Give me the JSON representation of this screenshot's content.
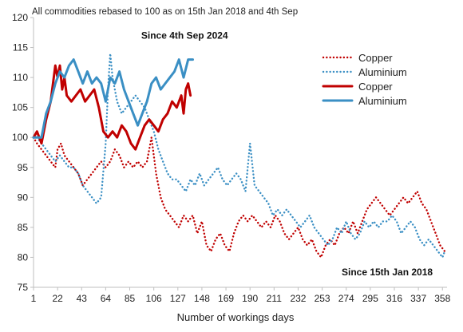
{
  "chart_data": {
    "type": "line",
    "title": "",
    "subtitle": "All commodities rebased to 100 as on 15th Jan 2018 and 4th Sep",
    "xlabel": "Number of workings days",
    "ylabel": "",
    "xlim": [
      1,
      362
    ],
    "ylim": [
      75,
      120
    ],
    "x_ticks": [
      1,
      22,
      43,
      64,
      85,
      106,
      127,
      148,
      169,
      190,
      211,
      232,
      253,
      274,
      295,
      316,
      337,
      358
    ],
    "y_ticks": [
      75,
      80,
      85,
      90,
      95,
      100,
      105,
      110,
      115,
      120
    ],
    "grid": false,
    "legend_position": "top-right",
    "annotations": [
      {
        "text": "Since 4th Sep 2024",
        "x": 95,
        "y": 116.5
      },
      {
        "text": "Since 15th Jan 2018",
        "x": 270,
        "y": 77
      }
    ],
    "series": [
      {
        "name": "Copper",
        "style": "dotted",
        "color": "#C00000",
        "points": [
          [
            1,
            100
          ],
          [
            4,
            99
          ],
          [
            8,
            98
          ],
          [
            12,
            97
          ],
          [
            16,
            96
          ],
          [
            20,
            95
          ],
          [
            22,
            98
          ],
          [
            25,
            99
          ],
          [
            28,
            97
          ],
          [
            32,
            96
          ],
          [
            36,
            95
          ],
          [
            40,
            94
          ],
          [
            44,
            92
          ],
          [
            48,
            93
          ],
          [
            52,
            94
          ],
          [
            56,
            95
          ],
          [
            60,
            96
          ],
          [
            64,
            95
          ],
          [
            68,
            96
          ],
          [
            72,
            98
          ],
          [
            76,
            97
          ],
          [
            80,
            95
          ],
          [
            84,
            96
          ],
          [
            88,
            95
          ],
          [
            92,
            96
          ],
          [
            96,
            95
          ],
          [
            100,
            96
          ],
          [
            104,
            100
          ],
          [
            108,
            94
          ],
          [
            112,
            90
          ],
          [
            116,
            88
          ],
          [
            120,
            87
          ],
          [
            124,
            86
          ],
          [
            128,
            85
          ],
          [
            132,
            87
          ],
          [
            136,
            86
          ],
          [
            140,
            87
          ],
          [
            144,
            84
          ],
          [
            148,
            86
          ],
          [
            152,
            82
          ],
          [
            156,
            81
          ],
          [
            160,
            83
          ],
          [
            164,
            84
          ],
          [
            168,
            82
          ],
          [
            172,
            81
          ],
          [
            176,
            84
          ],
          [
            180,
            86
          ],
          [
            184,
            87
          ],
          [
            188,
            86
          ],
          [
            192,
            87
          ],
          [
            196,
            86
          ],
          [
            200,
            85
          ],
          [
            204,
            86
          ],
          [
            208,
            85
          ],
          [
            212,
            87
          ],
          [
            216,
            86
          ],
          [
            220,
            84
          ],
          [
            224,
            83
          ],
          [
            228,
            84
          ],
          [
            232,
            85
          ],
          [
            236,
            83
          ],
          [
            240,
            82
          ],
          [
            244,
            83
          ],
          [
            248,
            81
          ],
          [
            252,
            80
          ],
          [
            256,
            82
          ],
          [
            260,
            83
          ],
          [
            264,
            82
          ],
          [
            268,
            84
          ],
          [
            272,
            85
          ],
          [
            276,
            84
          ],
          [
            280,
            86
          ],
          [
            284,
            84
          ],
          [
            288,
            86
          ],
          [
            292,
            88
          ],
          [
            296,
            89
          ],
          [
            300,
            90
          ],
          [
            304,
            89
          ],
          [
            308,
            88
          ],
          [
            312,
            87
          ],
          [
            316,
            88
          ],
          [
            320,
            89
          ],
          [
            324,
            90
          ],
          [
            328,
            89
          ],
          [
            332,
            90
          ],
          [
            336,
            91
          ],
          [
            340,
            89
          ],
          [
            344,
            88
          ],
          [
            348,
            86
          ],
          [
            352,
            84
          ],
          [
            356,
            82
          ],
          [
            360,
            81
          ]
        ]
      },
      {
        "name": "Aluminium",
        "style": "dotted",
        "color": "#3A8FC4",
        "points": [
          [
            1,
            100
          ],
          [
            4,
            100
          ],
          [
            8,
            99
          ],
          [
            12,
            98
          ],
          [
            16,
            97
          ],
          [
            20,
            96
          ],
          [
            24,
            97
          ],
          [
            28,
            96
          ],
          [
            32,
            95
          ],
          [
            36,
            95
          ],
          [
            40,
            94
          ],
          [
            44,
            92
          ],
          [
            48,
            91
          ],
          [
            52,
            90
          ],
          [
            56,
            89
          ],
          [
            60,
            90
          ],
          [
            64,
            99
          ],
          [
            66,
            108
          ],
          [
            68,
            114
          ],
          [
            70,
            110
          ],
          [
            74,
            106
          ],
          [
            78,
            104
          ],
          [
            82,
            105
          ],
          [
            86,
            106
          ],
          [
            90,
            107
          ],
          [
            94,
            106
          ],
          [
            98,
            105
          ],
          [
            102,
            103
          ],
          [
            106,
            101
          ],
          [
            110,
            98
          ],
          [
            114,
            96
          ],
          [
            118,
            94
          ],
          [
            122,
            93
          ],
          [
            126,
            93
          ],
          [
            130,
            92
          ],
          [
            134,
            91
          ],
          [
            138,
            93
          ],
          [
            142,
            92
          ],
          [
            146,
            94
          ],
          [
            150,
            92
          ],
          [
            154,
            93
          ],
          [
            158,
            94
          ],
          [
            162,
            95
          ],
          [
            166,
            93
          ],
          [
            170,
            92
          ],
          [
            174,
            93
          ],
          [
            178,
            94
          ],
          [
            182,
            93
          ],
          [
            186,
            91
          ],
          [
            190,
            99
          ],
          [
            194,
            92
          ],
          [
            198,
            91
          ],
          [
            202,
            90
          ],
          [
            206,
            89
          ],
          [
            210,
            87
          ],
          [
            214,
            88
          ],
          [
            218,
            87
          ],
          [
            222,
            88
          ],
          [
            226,
            87
          ],
          [
            230,
            86
          ],
          [
            234,
            85
          ],
          [
            238,
            86
          ],
          [
            242,
            87
          ],
          [
            246,
            85
          ],
          [
            250,
            84
          ],
          [
            254,
            83
          ],
          [
            258,
            82
          ],
          [
            262,
            83
          ],
          [
            266,
            85
          ],
          [
            270,
            84
          ],
          [
            274,
            86
          ],
          [
            278,
            84
          ],
          [
            282,
            83
          ],
          [
            286,
            84
          ],
          [
            290,
            86
          ],
          [
            294,
            85
          ],
          [
            298,
            86
          ],
          [
            302,
            85
          ],
          [
            306,
            86
          ],
          [
            310,
            86
          ],
          [
            314,
            87
          ],
          [
            318,
            86
          ],
          [
            322,
            84
          ],
          [
            326,
            85
          ],
          [
            330,
            86
          ],
          [
            334,
            85
          ],
          [
            338,
            83
          ],
          [
            342,
            82
          ],
          [
            346,
            83
          ],
          [
            350,
            82
          ],
          [
            354,
            81
          ],
          [
            358,
            80
          ],
          [
            360,
            81
          ]
        ]
      },
      {
        "name": "Copper",
        "style": "solid",
        "color": "#C00000",
        "points": [
          [
            1,
            100
          ],
          [
            4,
            101
          ],
          [
            8,
            99
          ],
          [
            12,
            103
          ],
          [
            16,
            106
          ],
          [
            18,
            109
          ],
          [
            20,
            112
          ],
          [
            22,
            110
          ],
          [
            24,
            112
          ],
          [
            26,
            108
          ],
          [
            28,
            110
          ],
          [
            30,
            107
          ],
          [
            34,
            106
          ],
          [
            38,
            107
          ],
          [
            42,
            108
          ],
          [
            46,
            106
          ],
          [
            50,
            107
          ],
          [
            54,
            108
          ],
          [
            58,
            105
          ],
          [
            62,
            101
          ],
          [
            66,
            100
          ],
          [
            70,
            101
          ],
          [
            74,
            100
          ],
          [
            78,
            102
          ],
          [
            82,
            101
          ],
          [
            86,
            99
          ],
          [
            90,
            98
          ],
          [
            94,
            100
          ],
          [
            98,
            102
          ],
          [
            102,
            103
          ],
          [
            106,
            102
          ],
          [
            110,
            101
          ],
          [
            114,
            103
          ],
          [
            118,
            104
          ],
          [
            122,
            106
          ],
          [
            126,
            105
          ],
          [
            130,
            107
          ],
          [
            132,
            104
          ],
          [
            134,
            108
          ],
          [
            136,
            109
          ],
          [
            138,
            107
          ]
        ]
      },
      {
        "name": "Aluminium",
        "style": "solid",
        "color": "#3A8FC4",
        "points": [
          [
            1,
            100
          ],
          [
            4,
            100
          ],
          [
            8,
            100
          ],
          [
            12,
            104
          ],
          [
            16,
            106
          ],
          [
            20,
            109
          ],
          [
            24,
            111
          ],
          [
            28,
            110
          ],
          [
            32,
            112
          ],
          [
            36,
            113
          ],
          [
            40,
            111
          ],
          [
            44,
            109
          ],
          [
            48,
            111
          ],
          [
            52,
            109
          ],
          [
            56,
            110
          ],
          [
            60,
            109
          ],
          [
            64,
            106
          ],
          [
            68,
            110
          ],
          [
            72,
            109
          ],
          [
            76,
            111
          ],
          [
            80,
            108
          ],
          [
            84,
            106
          ],
          [
            88,
            104
          ],
          [
            92,
            102
          ],
          [
            96,
            104
          ],
          [
            100,
            106
          ],
          [
            104,
            109
          ],
          [
            108,
            110
          ],
          [
            112,
            108
          ],
          [
            116,
            109
          ],
          [
            120,
            110
          ],
          [
            124,
            111
          ],
          [
            128,
            113
          ],
          [
            132,
            110
          ],
          [
            136,
            113
          ],
          [
            140,
            113
          ]
        ]
      }
    ]
  }
}
